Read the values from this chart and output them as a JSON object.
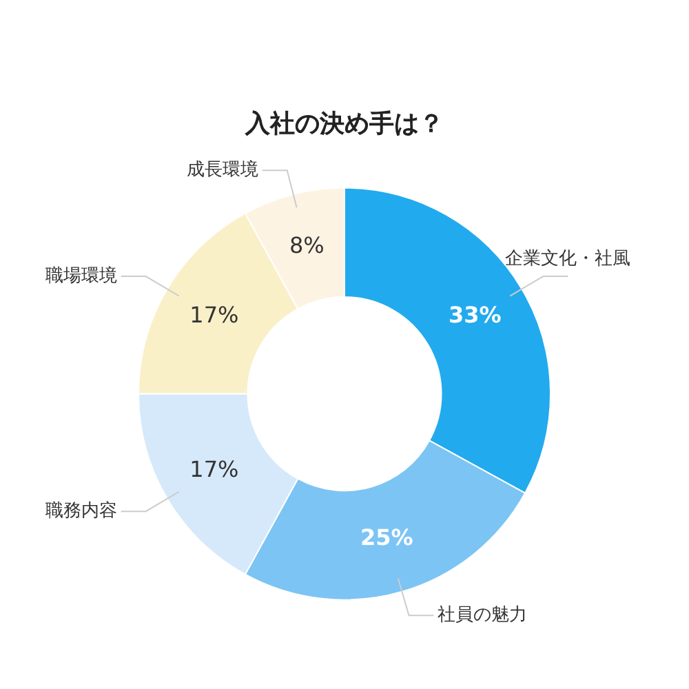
{
  "chart_data": {
    "type": "donut",
    "title": "入社の決め手は？",
    "categories": [
      "企業文化・社風",
      "社員の魅力",
      "職務内容",
      "職場環境",
      "成長環境"
    ],
    "values": [
      33,
      25,
      17,
      17,
      8
    ],
    "colors": [
      "#22aaee",
      "#7cc4f4",
      "#d6e9fb",
      "#faf0c8",
      "#fdf3e3"
    ],
    "value_labels": [
      "33%",
      "25%",
      "17%",
      "17%",
      "8%"
    ],
    "legend": false
  }
}
